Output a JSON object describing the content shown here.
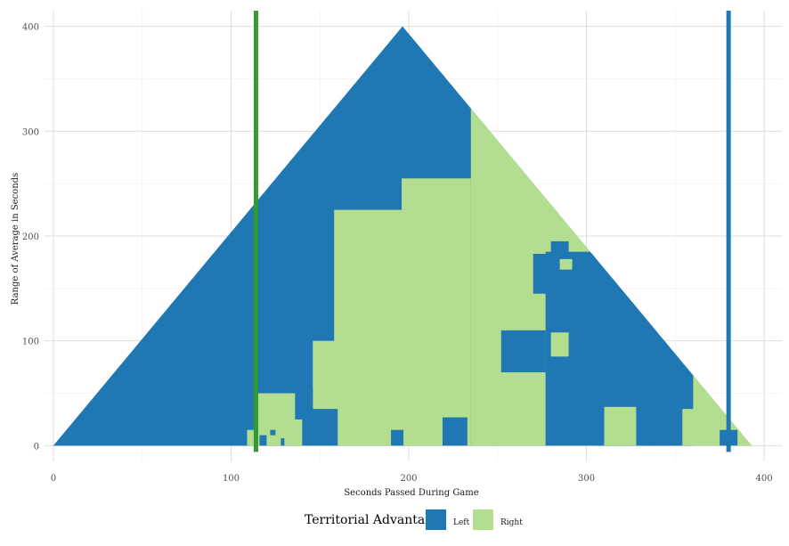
{
  "chart_data": {
    "type": "heatmap",
    "title": "",
    "xlabel": "Seconds Passed During Game",
    "ylabel": "Range of Average in Seconds",
    "xlim": [
      -5,
      410
    ],
    "ylim": [
      -15,
      415
    ],
    "x_ticks": [
      0,
      100,
      200,
      300,
      400
    ],
    "y_ticks": [
      0,
      100,
      200,
      300,
      400
    ],
    "grid": true,
    "legend": {
      "title": "Territorial Advantage",
      "position": "bottom",
      "entries": [
        {
          "label": "Left",
          "color": "#1f77b4"
        },
        {
          "label": "Right",
          "color": "#b3de8f"
        }
      ]
    },
    "triangle": {
      "x_start": 0,
      "x_end": 393,
      "apex_x": 196.5,
      "apex_y": 400
    },
    "vlines": [
      {
        "x": 114,
        "color": "#339933"
      },
      {
        "x": 380,
        "color": "#1f77b4"
      }
    ],
    "base_fill": "Left",
    "regions": [
      {
        "fill": "Right",
        "x0": 138,
        "x1": 235,
        "y0": 0,
        "y1": 400
      },
      {
        "fill": "Left",
        "x0": 196,
        "x1": 235,
        "y0": 255,
        "y1": 400
      },
      {
        "fill": "Left",
        "x0": 0,
        "x1": 158,
        "y0": 100,
        "y1": 400
      },
      {
        "fill": "Left",
        "x0": 0,
        "x1": 196,
        "y0": 225,
        "y1": 400
      },
      {
        "fill": "Left",
        "x0": 0,
        "x1": 146,
        "y0": 0,
        "y1": 400
      },
      {
        "fill": "Right",
        "x0": 115,
        "x1": 140,
        "y0": 0,
        "y1": 50
      },
      {
        "fill": "Left",
        "x0": 116,
        "x1": 120,
        "y0": 0,
        "y1": 10
      },
      {
        "fill": "Left",
        "x0": 122,
        "x1": 125,
        "y0": 10,
        "y1": 15
      },
      {
        "fill": "Left",
        "x0": 128,
        "x1": 130,
        "y0": 0,
        "y1": 7
      },
      {
        "fill": "Right",
        "x0": 109,
        "x1": 115,
        "y0": 0,
        "y1": 15
      },
      {
        "fill": "Left",
        "x0": 136,
        "x1": 146,
        "y0": 25,
        "y1": 55
      },
      {
        "fill": "Left",
        "x0": 143,
        "x1": 160,
        "y0": 0,
        "y1": 35
      },
      {
        "fill": "Left",
        "x0": 190,
        "x1": 197,
        "y0": 0,
        "y1": 15
      },
      {
        "fill": "Left",
        "x0": 219,
        "x1": 233,
        "y0": 0,
        "y1": 27
      },
      {
        "fill": "Left",
        "x0": 244,
        "x1": 251,
        "y0": 208,
        "y1": 220
      },
      {
        "fill": "Left",
        "x0": 244,
        "x1": 251,
        "y0": 110,
        "y1": 126
      },
      {
        "fill": "Right",
        "x0": 235,
        "x1": 450,
        "y0": 0,
        "y1": 400
      },
      {
        "fill": "Left",
        "x0": 277,
        "x1": 340,
        "y0": 0,
        "y1": 185
      },
      {
        "fill": "Left",
        "x0": 252,
        "x1": 277,
        "y0": 70,
        "y1": 110
      },
      {
        "fill": "Left",
        "x0": 270,
        "x1": 305,
        "y0": 145,
        "y1": 183
      },
      {
        "fill": "Left",
        "x0": 280,
        "x1": 290,
        "y0": 175,
        "y1": 195
      },
      {
        "fill": "Left",
        "x0": 305,
        "x1": 360,
        "y0": 0,
        "y1": 160
      },
      {
        "fill": "Right",
        "x0": 285,
        "x1": 292,
        "y0": 168,
        "y1": 178
      },
      {
        "fill": "Right",
        "x0": 280,
        "x1": 290,
        "y0": 85,
        "y1": 108
      },
      {
        "fill": "Right",
        "x0": 310,
        "x1": 328,
        "y0": 0,
        "y1": 37
      },
      {
        "fill": "Right",
        "x0": 340,
        "x1": 350,
        "y0": 55,
        "y1": 70
      },
      {
        "fill": "Left",
        "x0": 336,
        "x1": 360,
        "y0": 0,
        "y1": 70
      },
      {
        "fill": "Right",
        "x0": 354,
        "x1": 400,
        "y0": 0,
        "y1": 35
      },
      {
        "fill": "Left",
        "x0": 375,
        "x1": 385,
        "y0": 0,
        "y1": 15
      }
    ]
  }
}
